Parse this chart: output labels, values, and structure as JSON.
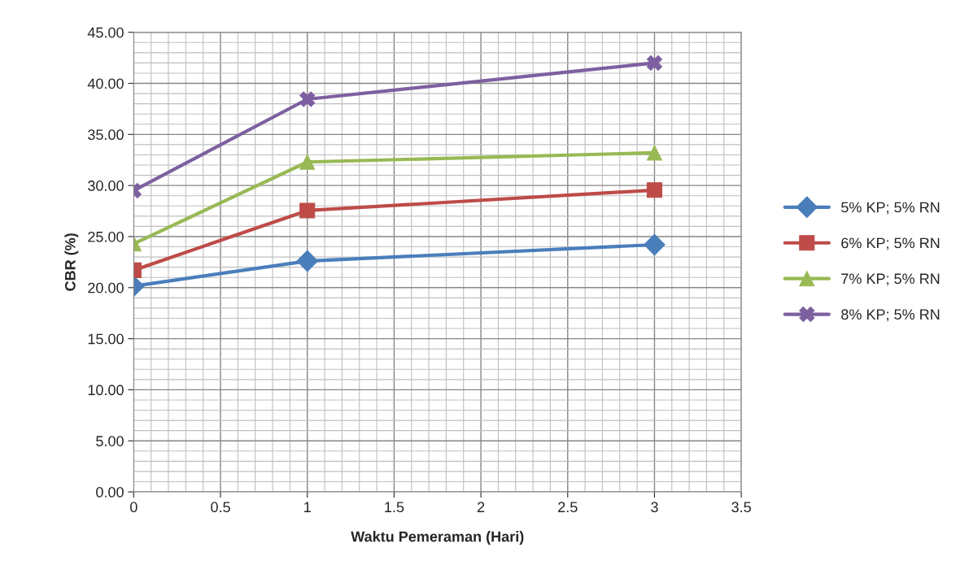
{
  "chart_data": {
    "type": "line",
    "xlabel": "Waktu Pemeraman (Hari)",
    "ylabel": "CBR (%)",
    "x": [
      0,
      1,
      3
    ],
    "series": [
      {
        "name": "5% KP; 5% RN",
        "color": "#4a7ebb",
        "marker": "diamond",
        "values": [
          20.15,
          22.6,
          24.2
        ]
      },
      {
        "name": "6% KP; 5% RN",
        "color": "#be4b48",
        "marker": "square",
        "values": [
          21.7,
          27.55,
          29.55
        ]
      },
      {
        "name": "7% KP; 5% RN",
        "color": "#98b954",
        "marker": "triangle",
        "values": [
          24.3,
          32.3,
          33.2
        ]
      },
      {
        "name": "8% KP; 5% RN",
        "color": "#7d60a0",
        "marker": "cross",
        "values": [
          29.5,
          38.45,
          42.0
        ]
      }
    ],
    "xlim": [
      0,
      3.5
    ],
    "xticks": [
      0,
      0.5,
      1,
      1.5,
      2,
      2.5,
      3,
      3.5
    ],
    "ylim": [
      0,
      45
    ],
    "yticks": [
      {
        "value": 0,
        "label": "0.00"
      },
      {
        "value": 5,
        "label": "5.00"
      },
      {
        "value": 10,
        "label": "10.00"
      },
      {
        "value": 15,
        "label": "15.00"
      },
      {
        "value": 20,
        "label": "20.00"
      },
      {
        "value": 25,
        "label": "25.00"
      },
      {
        "value": 30,
        "label": "30.00"
      },
      {
        "value": 35,
        "label": "35.00"
      },
      {
        "value": 40,
        "label": "40.00"
      },
      {
        "value": 45,
        "label": "45.00"
      }
    ],
    "grid": true,
    "legend": "right",
    "line_style": "solid"
  }
}
